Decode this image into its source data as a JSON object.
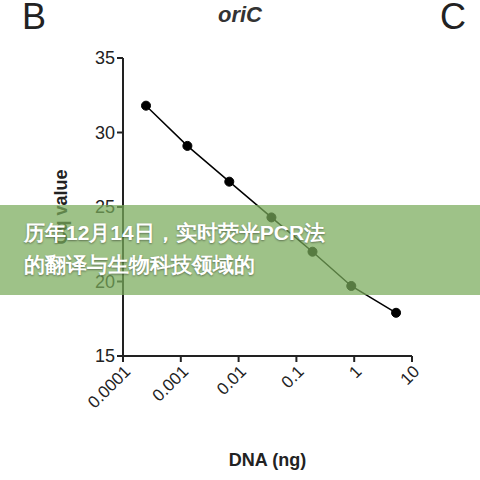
{
  "chart_data": {
    "type": "scatter",
    "title": "oriC",
    "x_label": "DNA (ng)",
    "y_label": "Cq value",
    "x": [
      0.00025,
      0.0013,
      0.0069,
      0.037,
      0.19,
      0.89,
      5.3
    ],
    "values": [
      31.8,
      29.1,
      26.7,
      24.3,
      22.0,
      19.7,
      17.9
    ],
    "xlim": [
      0.0001,
      10
    ],
    "xticks": [
      0.0001,
      0.001,
      0.01,
      0.1,
      1,
      10
    ],
    "ylim": [
      15,
      35
    ],
    "yticks": [
      15,
      20,
      25,
      30,
      35
    ],
    "log": "x",
    "grid": false,
    "color": "#000000",
    "marker": "circle",
    "line_style": "solid",
    "annotations": [
      "B",
      "C"
    ]
  },
  "overlay": {
    "text": "历年12月14日，实时荧光PCR法的翻译与生物科技领域的"
  }
}
